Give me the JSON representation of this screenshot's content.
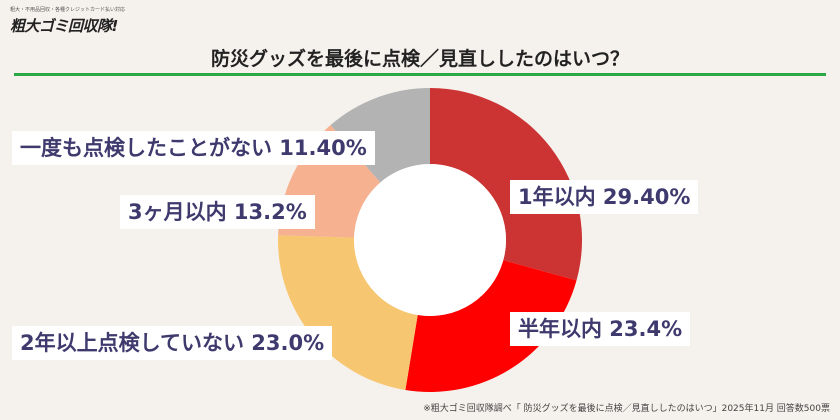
{
  "header": {
    "logo_tagline": "粗大・不用品回収・各種クレジットカード払い対応",
    "logo_text": "粗大ゴミ回収隊!",
    "title": "防災グッズを最後に点検／見直ししたのはいつ？"
  },
  "footnote": "※粗大ゴミ回収隊調べ「 防災グッズを最後に点検／見直ししたのはいつ」2025年11月 回答数500票",
  "chart_data": {
    "type": "pie",
    "donut": true,
    "categories": [
      "1年以内",
      "半年以内",
      "2年以上点検していない",
      "3ヶ月以内",
      "一度も点検したことがない"
    ],
    "values": [
      29.4,
      23.4,
      23.0,
      13.2,
      11.4
    ],
    "labels": [
      "1年以内 29.40%",
      "半年以内 23.4%",
      "2年以上点検していない 23.0%",
      "3ヶ月以内 13.2%",
      "一度も点検したことがない 11.40%"
    ],
    "colors": [
      "#cc3333",
      "#ff0000",
      "#f7c670",
      "#f5b190",
      "#b3b3b3"
    ],
    "title": "防災グッズを最後に点検／見直ししたのはいつ？"
  }
}
